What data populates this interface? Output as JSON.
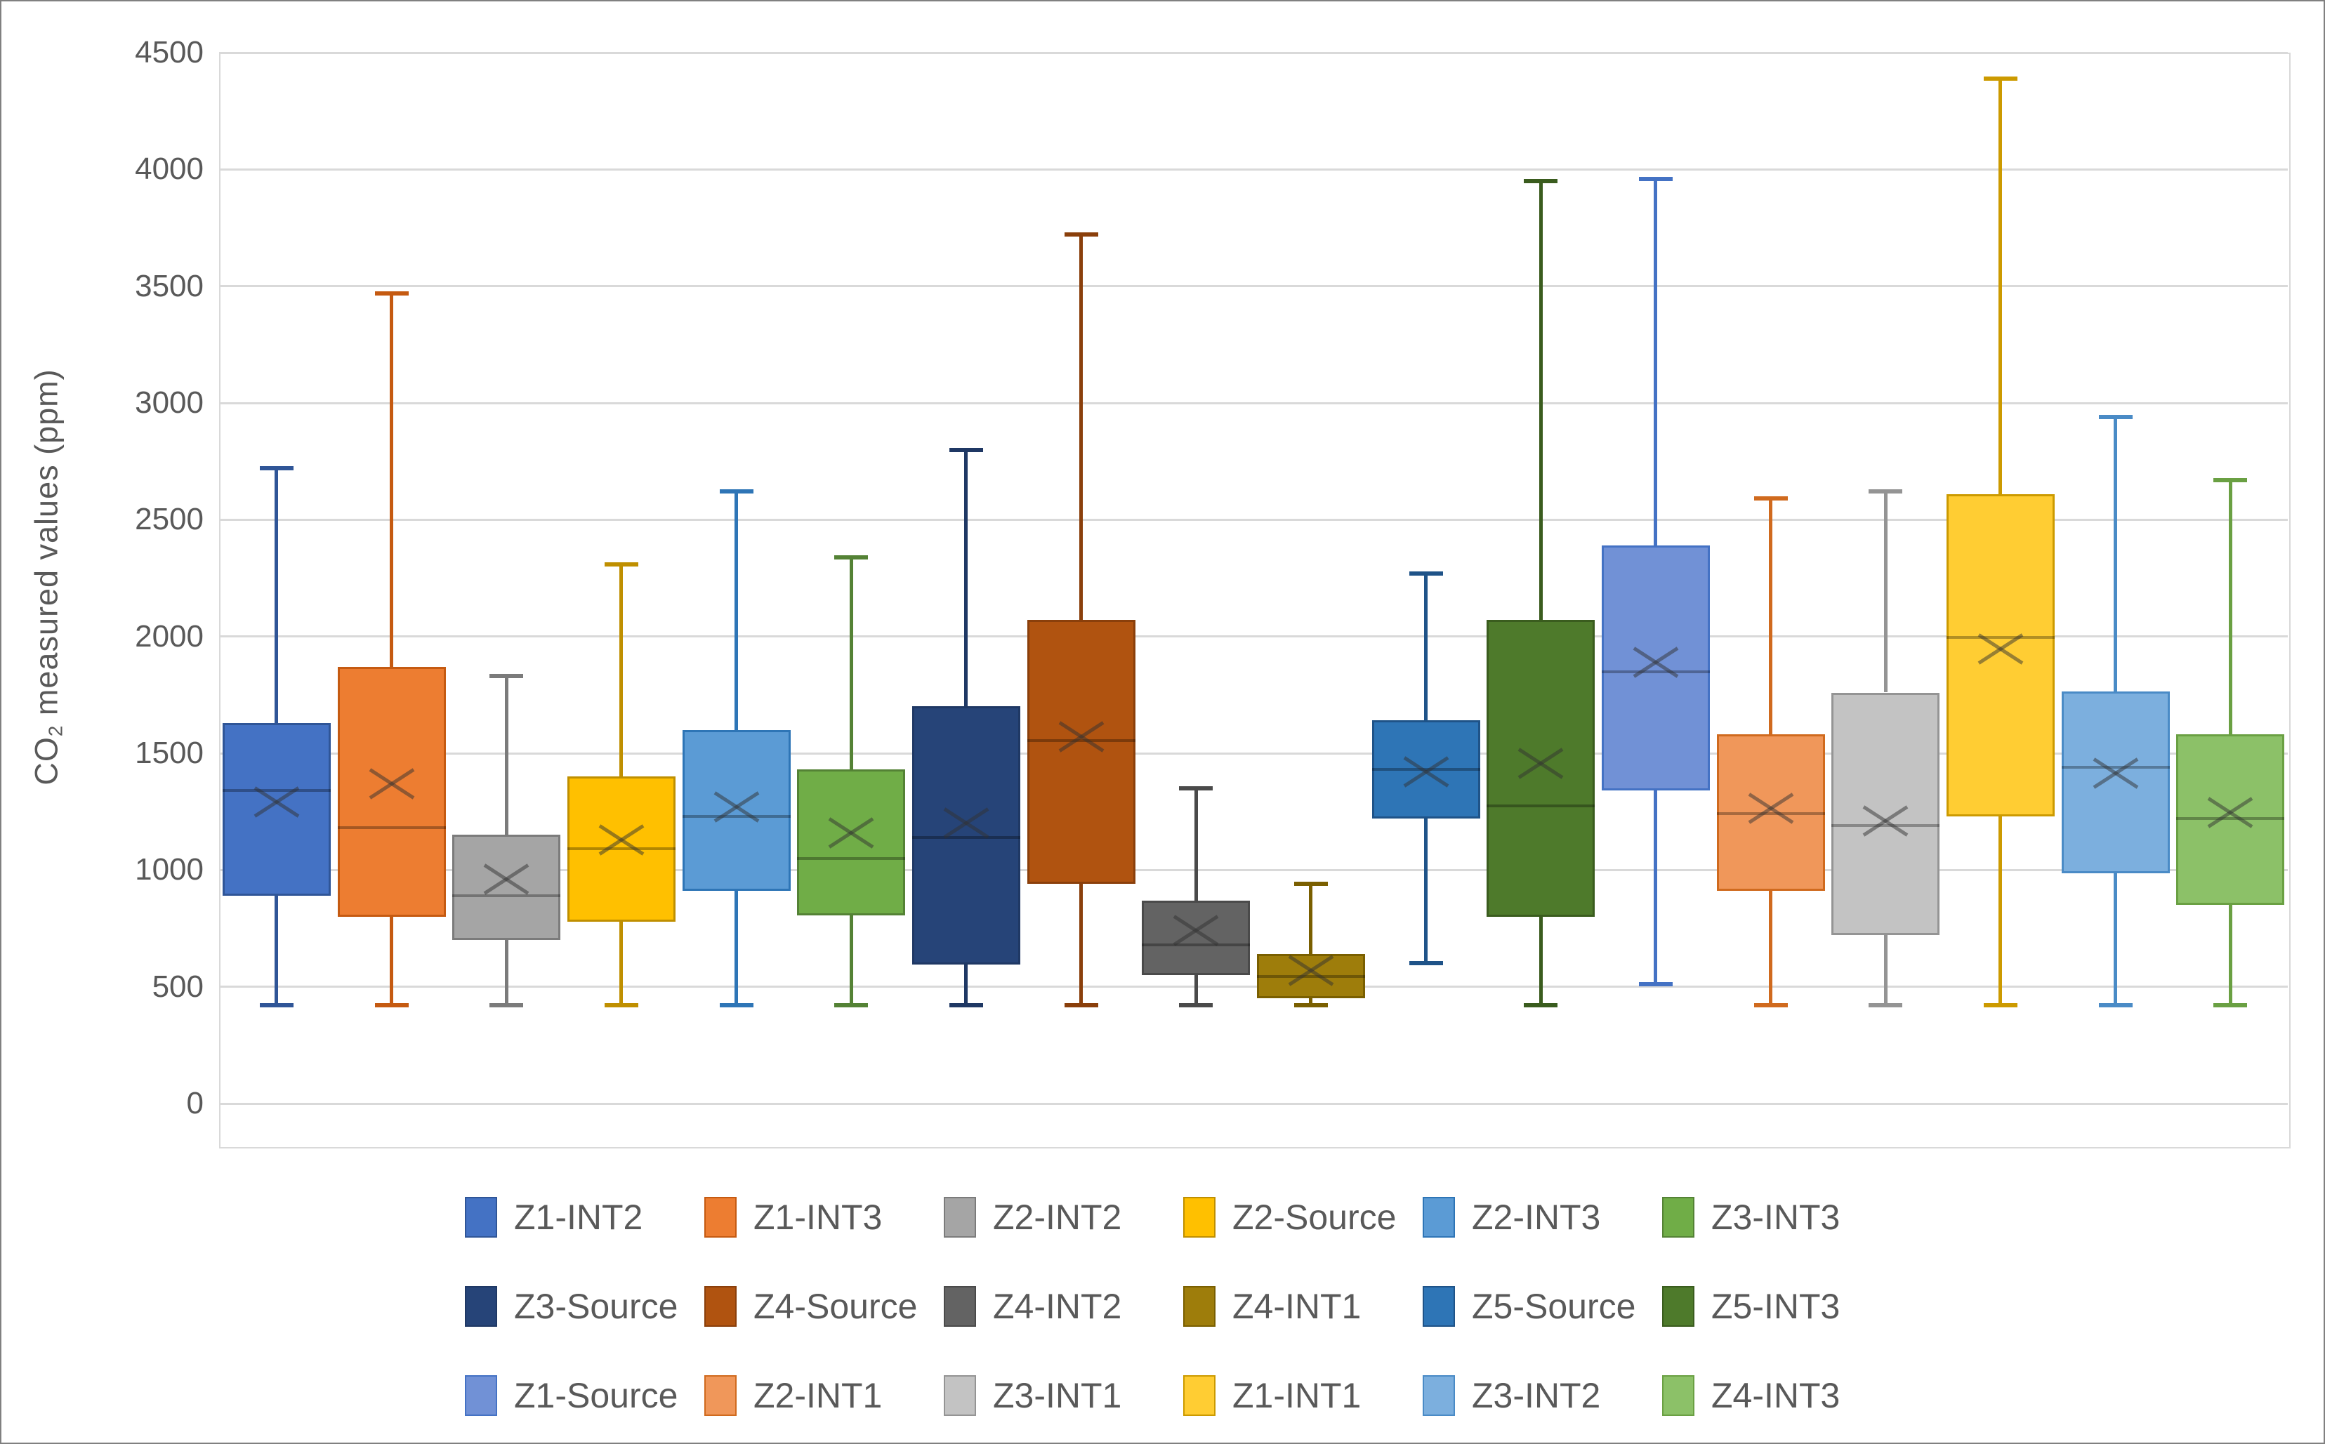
{
  "chart_data": {
    "type": "boxplot",
    "title": "",
    "ylabel_prefix": "CO",
    "ylabel_sub": "2",
    "ylabel_suffix": " measured values (ppm)",
    "xlabel": "",
    "grid": true,
    "legend_position": "bottom",
    "legend_columns": 6,
    "y_axis": {
      "min": 0,
      "max": 4500,
      "step": 500,
      "tick_labels": [
        "0",
        "500",
        "1000",
        "1500",
        "2000",
        "2500",
        "3000",
        "3500",
        "4000",
        "4500"
      ]
    },
    "series": [
      {
        "name": "Z1-INT2",
        "fill": "#4472C4",
        "stroke": "#2F5597",
        "min": 420,
        "q1": 890,
        "median": 1340,
        "mean": 1290,
        "q3": 1630,
        "max": 2720
      },
      {
        "name": "Z1-INT3",
        "fill": "#ED7D31",
        "stroke": "#C55A11",
        "min": 420,
        "q1": 800,
        "median": 1180,
        "mean": 1370,
        "q3": 1870,
        "max": 3470
      },
      {
        "name": "Z2-INT2",
        "fill": "#A5A5A5",
        "stroke": "#7B7B7B",
        "min": 420,
        "q1": 700,
        "median": 890,
        "mean": 960,
        "q3": 1150,
        "max": 1830
      },
      {
        "name": "Z2-Source",
        "fill": "#FFC000",
        "stroke": "#BF8F00",
        "min": 420,
        "q1": 780,
        "median": 1090,
        "mean": 1130,
        "q3": 1400,
        "max": 2310
      },
      {
        "name": "Z2-INT3",
        "fill": "#5B9BD5",
        "stroke": "#2E75B6",
        "min": 420,
        "q1": 910,
        "median": 1230,
        "mean": 1270,
        "q3": 1600,
        "max": 2620
      },
      {
        "name": "Z3-INT3",
        "fill": "#70AD47",
        "stroke": "#548235",
        "min": 420,
        "q1": 805,
        "median": 1050,
        "mean": 1160,
        "q3": 1430,
        "max": 2340
      },
      {
        "name": "Z3-Source",
        "fill": "#264478",
        "stroke": "#1F3864",
        "min": 420,
        "q1": 595,
        "median": 1140,
        "mean": 1200,
        "q3": 1700,
        "max": 2800
      },
      {
        "name": "Z4-Source",
        "fill": "#B05310",
        "stroke": "#8A3F0B",
        "min": 420,
        "q1": 940,
        "median": 1555,
        "mean": 1570,
        "q3": 2070,
        "max": 3720
      },
      {
        "name": "Z4-INT2",
        "fill": "#636363",
        "stroke": "#4A4A4A",
        "min": 420,
        "q1": 550,
        "median": 680,
        "mean": 740,
        "q3": 870,
        "max": 1350
      },
      {
        "name": "Z4-INT1",
        "fill": "#9E7D0B",
        "stroke": "#7A5F00",
        "min": 420,
        "q1": 450,
        "median": 545,
        "mean": 570,
        "q3": 640,
        "max": 940
      },
      {
        "name": "Z5-Source",
        "fill": "#2E75B6",
        "stroke": "#1F5388",
        "min": 600,
        "q1": 1220,
        "median": 1430,
        "mean": 1420,
        "q3": 1640,
        "max": 2270
      },
      {
        "name": "Z5-INT3",
        "fill": "#4E7A2B",
        "stroke": "#3A5C1E",
        "min": 420,
        "q1": 800,
        "median": 1275,
        "mean": 1455,
        "q3": 2070,
        "max": 3950
      },
      {
        "name": "Z1-Source",
        "fill": "#7191D6",
        "stroke": "#4472C4",
        "min": 510,
        "q1": 1340,
        "median": 1850,
        "mean": 1890,
        "q3": 2390,
        "max": 3960
      },
      {
        "name": "Z2-INT1",
        "fill": "#F0975A",
        "stroke": "#D06A1E",
        "min": 420,
        "q1": 910,
        "median": 1240,
        "mean": 1265,
        "q3": 1580,
        "max": 2590
      },
      {
        "name": "Z3-INT1",
        "fill": "#C3C3C3",
        "stroke": "#949494",
        "min": 420,
        "q1": 720,
        "median": 1190,
        "mean": 1210,
        "q3": 1760,
        "max": 2620
      },
      {
        "name": "Z1-INT1",
        "fill": "#FFCD33",
        "stroke": "#CC9A00",
        "min": 420,
        "q1": 1230,
        "median": 1995,
        "mean": 1945,
        "q3": 2610,
        "max": 4390
      },
      {
        "name": "Z3-INT2",
        "fill": "#7CAFDE",
        "stroke": "#4A8BC6",
        "min": 420,
        "q1": 985,
        "median": 1440,
        "mean": 1415,
        "q3": 1765,
        "max": 2940
      },
      {
        "name": "Z4-INT3",
        "fill": "#8CC168",
        "stroke": "#6AA043",
        "min": 420,
        "q1": 850,
        "median": 1220,
        "mean": 1245,
        "q3": 1580,
        "max": 2670
      }
    ],
    "colors": {
      "gridline": "#D9D9D9",
      "plot_border": "#D9D9D9",
      "axis_text": "#595959",
      "median_line": "rgba(0,0,0,0.30)",
      "mean_marker": "rgba(50,50,50,0.50)",
      "outer_border": "#808080"
    }
  }
}
